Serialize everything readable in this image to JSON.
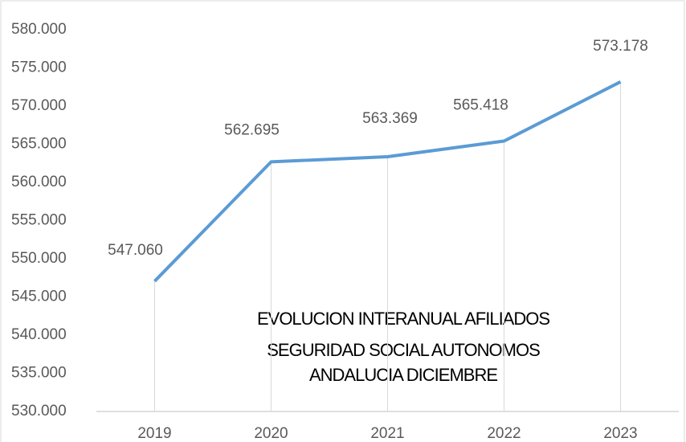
{
  "chart_data": {
    "type": "line",
    "title": [
      "EVOLUCION INTERANUAL AFILIADOS",
      "SEGURIDAD SOCIAL AUTONOMOS",
      "ANDALUCIA  DICIEMBRE"
    ],
    "categories": [
      "2019",
      "2020",
      "2021",
      "2022",
      "2023"
    ],
    "series": [
      {
        "name": null,
        "color": "#5b9bd5",
        "values": [
          547060,
          562695,
          563369,
          565418,
          573178
        ],
        "value_labels": [
          "547.060",
          "562.695",
          "563.369",
          "565.418",
          "573.178"
        ]
      }
    ],
    "ylim": [
      530000,
      580000
    ],
    "yticks": [
      {
        "value": 530000,
        "label": "530.000"
      },
      {
        "value": 535000,
        "label": "535.000"
      },
      {
        "value": 540000,
        "label": "540.000"
      },
      {
        "value": 545000,
        "label": "545.000"
      },
      {
        "value": 550000,
        "label": "550.000"
      },
      {
        "value": 555000,
        "label": "555.000"
      },
      {
        "value": 560000,
        "label": "560.000"
      },
      {
        "value": 565000,
        "label": "565.000"
      },
      {
        "value": 570000,
        "label": "570.000"
      },
      {
        "value": 575000,
        "label": "575.000"
      },
      {
        "value": 580000,
        "label": "580.000"
      }
    ],
    "grid": false,
    "drop_lines": true
  }
}
